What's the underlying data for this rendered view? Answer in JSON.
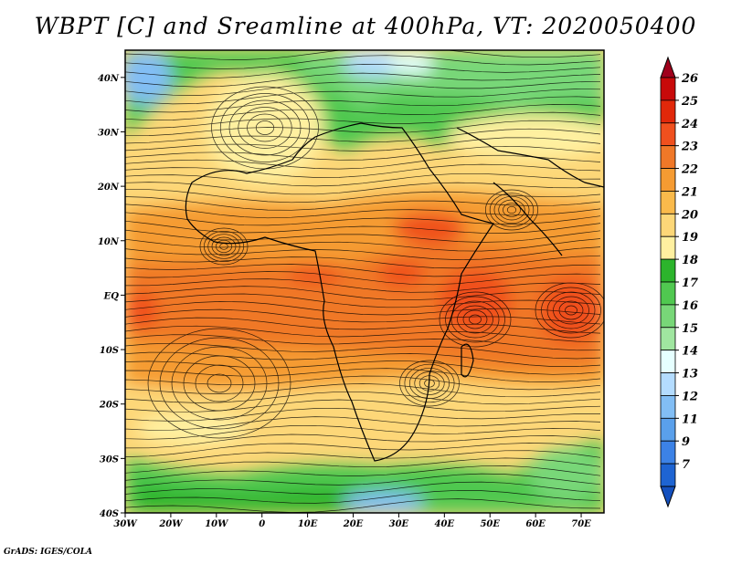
{
  "title": "WBPT [C] and Sreamline at 400hPa, VT: 2020050400",
  "footer": "GrADS: IGES/COLA",
  "map": {
    "variable": "Wet-bulb potential temperature",
    "unit": "C",
    "level": "400hPa",
    "valid_time": "2020050400",
    "lon_range": [
      -30,
      75
    ],
    "lat_range": [
      -40,
      45
    ],
    "x_tick_labels": [
      "30W",
      "20W",
      "10W",
      "0",
      "10E",
      "20E",
      "30E",
      "40E",
      "50E",
      "60E",
      "70E"
    ],
    "y_tick_labels": [
      "40N",
      "30N",
      "20N",
      "10N",
      "EQ",
      "10S",
      "20S",
      "30S",
      "40S"
    ],
    "overlay": "streamlines"
  },
  "colorbar": {
    "labels": [
      "26",
      "25",
      "24",
      "23",
      "22",
      "21",
      "20",
      "19",
      "18",
      "17",
      "16",
      "15",
      "14",
      "13",
      "12",
      "11",
      "9",
      "7"
    ],
    "colors": [
      "#a0001c",
      "#c80a0a",
      "#e1280a",
      "#f0501e",
      "#f07828",
      "#f59b32",
      "#faba4b",
      "#fdd778",
      "#fff0a0",
      "#2cb42c",
      "#50c850",
      "#78d778",
      "#a0e6a0",
      "#e6ffff",
      "#b4dcff",
      "#82bef5",
      "#5aa0eb",
      "#3c82e6",
      "#1e64d2",
      "#1450be"
    ]
  }
}
